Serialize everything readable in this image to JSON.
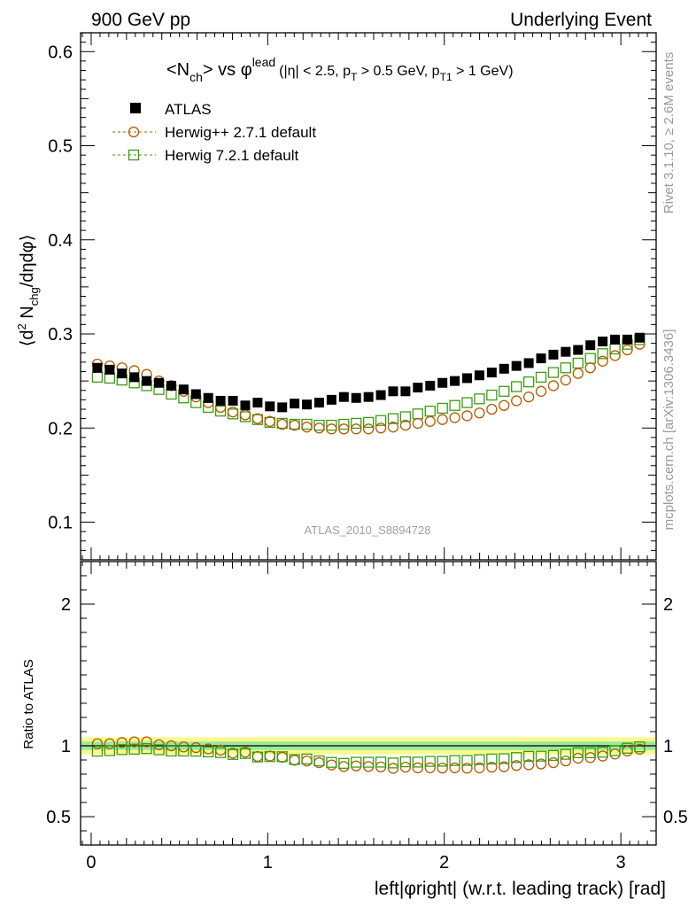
{
  "header": {
    "left": "900 GeV pp",
    "right": "Underlying Event"
  },
  "side_labels": {
    "rivet": "Rivet 3.1.10, ≥ 2.6M events",
    "mcplots": "mcplots.cern.ch [arXiv:1306.3436]"
  },
  "watermark": "ATLAS_2010_S8894728",
  "colors": {
    "atlas": "#000000",
    "herwigpp": "#b35a00",
    "herwig7": "#3c9c12",
    "band_inner": "#9be89b",
    "band_outer": "#fafa8c"
  },
  "chart_data": [
    {
      "type": "scatter",
      "title": {
        "prefix": "<N",
        "prefix_sub": "ch",
        "mid": "> vs ",
        "phi": "φ",
        "phi_sup": "lead",
        "cut_a": "(|η| < 2.5, p",
        "cut_a_sub": "T",
        "cut_b": " > 0.5 GeV, p",
        "cut_b_sub": "T1",
        "cut_c": " > 1 GeV)"
      },
      "ylabel": {
        "open": "⟨d",
        "sup2": "2",
        "n": " N",
        "sub_chg": "chg",
        "rest": "/dηdφ⟩"
      },
      "ylim": [
        0.06,
        0.62
      ],
      "yticks": [
        0.1,
        0.2,
        0.3,
        0.4,
        0.5,
        0.6
      ],
      "ytick_labels": [
        "0.1",
        "0.2",
        "0.3",
        "0.4",
        "0.5",
        "0.6"
      ],
      "legend_position": "top-left",
      "series": [
        {
          "name": "ATLAS",
          "marker": "filled-square",
          "x": [
            0.0349,
            0.1047,
            0.1745,
            0.2443,
            0.3142,
            0.384,
            0.4538,
            0.5236,
            0.5934,
            0.6632,
            0.733,
            0.8029,
            0.8727,
            0.9425,
            1.0123,
            1.0821,
            1.1519,
            1.2217,
            1.2915,
            1.3614,
            1.4312,
            1.501,
            1.5708,
            1.6406,
            1.7104,
            1.7802,
            1.85,
            1.9199,
            1.9897,
            2.0595,
            2.1293,
            2.1991,
            2.2689,
            2.3387,
            2.4086,
            2.4784,
            2.5482,
            2.618,
            2.6878,
            2.7576,
            2.8274,
            2.8972,
            2.9671,
            3.0369,
            3.1067
          ],
          "values": [
            0.264,
            0.262,
            0.258,
            0.254,
            0.25,
            0.248,
            0.245,
            0.241,
            0.236,
            0.232,
            0.229,
            0.229,
            0.224,
            0.227,
            0.223,
            0.222,
            0.226,
            0.225,
            0.227,
            0.23,
            0.233,
            0.232,
            0.233,
            0.235,
            0.239,
            0.239,
            0.243,
            0.245,
            0.248,
            0.25,
            0.253,
            0.256,
            0.259,
            0.263,
            0.266,
            0.269,
            0.274,
            0.278,
            0.281,
            0.283,
            0.288,
            0.292,
            0.294,
            0.294,
            0.296
          ]
        },
        {
          "name": "Herwig++ 2.7.1 default",
          "marker": "open-circle",
          "x": [
            0.0349,
            0.1047,
            0.1745,
            0.2443,
            0.3142,
            0.384,
            0.4538,
            0.5236,
            0.5934,
            0.6632,
            0.733,
            0.8029,
            0.8727,
            0.9425,
            1.0123,
            1.0821,
            1.1519,
            1.2217,
            1.2915,
            1.3614,
            1.4312,
            1.501,
            1.5708,
            1.6406,
            1.7104,
            1.7802,
            1.85,
            1.9199,
            1.9897,
            2.0595,
            2.1293,
            2.1991,
            2.2689,
            2.3387,
            2.4086,
            2.4784,
            2.5482,
            2.618,
            2.6878,
            2.7576,
            2.8274,
            2.8972,
            2.9671,
            3.0369,
            3.1067
          ],
          "values": [
            0.268,
            0.266,
            0.264,
            0.261,
            0.257,
            0.25,
            0.245,
            0.239,
            0.233,
            0.227,
            0.222,
            0.217,
            0.214,
            0.21,
            0.207,
            0.204,
            0.203,
            0.201,
            0.2,
            0.199,
            0.199,
            0.199,
            0.199,
            0.2,
            0.201,
            0.203,
            0.205,
            0.207,
            0.209,
            0.211,
            0.213,
            0.216,
            0.22,
            0.224,
            0.229,
            0.233,
            0.239,
            0.245,
            0.251,
            0.258,
            0.264,
            0.271,
            0.277,
            0.283,
            0.289
          ]
        },
        {
          "name": "Herwig 7.2.1 default",
          "marker": "open-square",
          "x": [
            0.0349,
            0.1047,
            0.1745,
            0.2443,
            0.3142,
            0.384,
            0.4538,
            0.5236,
            0.5934,
            0.6632,
            0.733,
            0.8029,
            0.8727,
            0.9425,
            1.0123,
            1.0821,
            1.1519,
            1.2217,
            1.2915,
            1.3614,
            1.4312,
            1.501,
            1.5708,
            1.6406,
            1.7104,
            1.7802,
            1.85,
            1.9199,
            1.9897,
            2.0595,
            2.1293,
            2.1991,
            2.2689,
            2.3387,
            2.4086,
            2.4784,
            2.5482,
            2.618,
            2.6878,
            2.7576,
            2.8274,
            2.8972,
            2.9671,
            3.0369,
            3.1067
          ],
          "values": [
            0.254,
            0.253,
            0.251,
            0.248,
            0.245,
            0.241,
            0.236,
            0.232,
            0.227,
            0.222,
            0.218,
            0.215,
            0.212,
            0.209,
            0.206,
            0.205,
            0.204,
            0.204,
            0.203,
            0.203,
            0.204,
            0.205,
            0.206,
            0.208,
            0.21,
            0.212,
            0.215,
            0.218,
            0.221,
            0.224,
            0.227,
            0.231,
            0.235,
            0.239,
            0.244,
            0.249,
            0.254,
            0.259,
            0.264,
            0.269,
            0.274,
            0.279,
            0.284,
            0.289,
            0.294
          ]
        }
      ]
    },
    {
      "type": "scatter",
      "ylabel": "Ratio to ATLAS",
      "xlabel": "left|φright| (w.r.t. leading track) [rad]",
      "ylim": [
        0.3,
        2.3
      ],
      "yticks": [
        0.5,
        1,
        2
      ],
      "ytick_labels": [
        "0.5",
        "1",
        "2"
      ],
      "xlim": [
        -0.06,
        3.2
      ],
      "xticks": [
        0,
        1,
        2,
        3
      ],
      "xtick_labels": [
        "0",
        "1",
        "2",
        "3"
      ],
      "reference_line": 1,
      "band": {
        "inner_halfwidth": 0.03,
        "outer_halfwidth": 0.06
      },
      "series": [
        {
          "name": "Herwig++ 2.7.1 default",
          "marker": "open-circle",
          "values": [
            1.015,
            1.015,
            1.023,
            1.028,
            1.028,
            1.008,
            1.0,
            0.992,
            0.987,
            0.978,
            0.969,
            0.948,
            0.955,
            0.925,
            0.928,
            0.919,
            0.898,
            0.893,
            0.881,
            0.865,
            0.854,
            0.858,
            0.854,
            0.851,
            0.841,
            0.849,
            0.844,
            0.845,
            0.843,
            0.844,
            0.842,
            0.844,
            0.849,
            0.852,
            0.861,
            0.866,
            0.872,
            0.881,
            0.893,
            0.912,
            0.917,
            0.928,
            0.942,
            0.963,
            0.976
          ]
        },
        {
          "name": "Herwig 7.2.1 default",
          "marker": "open-square",
          "values": [
            0.962,
            0.966,
            0.973,
            0.976,
            0.98,
            0.972,
            0.963,
            0.963,
            0.962,
            0.957,
            0.952,
            0.939,
            0.946,
            0.921,
            0.924,
            0.923,
            0.903,
            0.907,
            0.894,
            0.883,
            0.876,
            0.884,
            0.884,
            0.885,
            0.879,
            0.887,
            0.885,
            0.89,
            0.891,
            0.896,
            0.897,
            0.902,
            0.907,
            0.909,
            0.917,
            0.926,
            0.927,
            0.932,
            0.94,
            0.951,
            0.951,
            0.955,
            0.966,
            0.983,
            0.993
          ]
        }
      ]
    }
  ]
}
